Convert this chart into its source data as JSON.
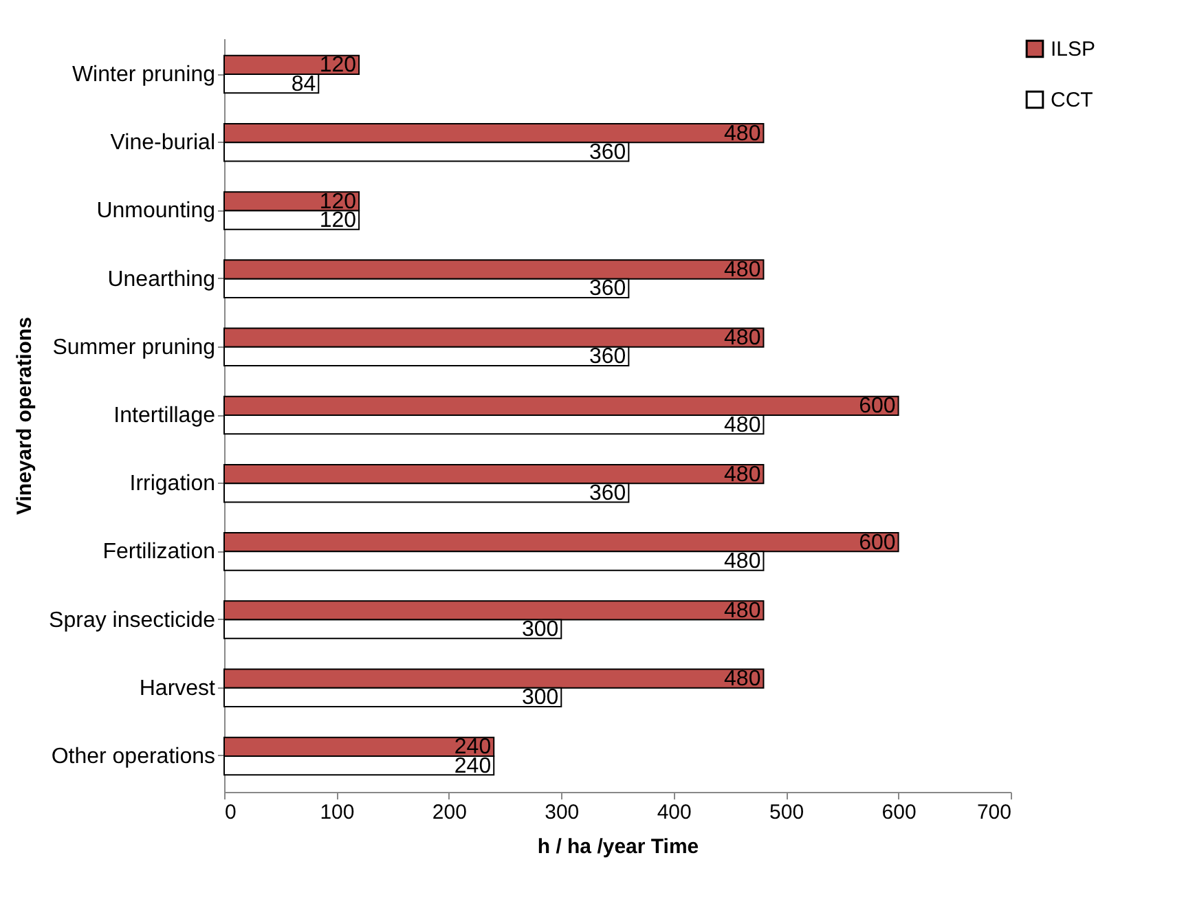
{
  "chart_data": {
    "type": "bar",
    "orientation": "horizontal",
    "xlabel": "h / ha /year   Time",
    "ylabel": "Vineyard    operations",
    "categories": [
      "Winter pruning",
      "Vine-burial",
      "Unmounting",
      "Unearthing",
      "Summer pruning",
      "Intertillage",
      "Irrigation",
      "Fertilization",
      "Spray insecticide",
      "Harvest",
      "Other operations"
    ],
    "series": [
      {
        "name": "ILSP",
        "color": "#c0504d",
        "values": [
          120,
          480,
          120,
          480,
          480,
          600,
          480,
          600,
          480,
          480,
          240
        ]
      },
      {
        "name": "CCT",
        "color": "#ffffff",
        "values": [
          84,
          360,
          120,
          360,
          360,
          480,
          360,
          480,
          300,
          300,
          240
        ]
      }
    ],
    "xlim": [
      0,
      700
    ],
    "xticks": [
      0,
      100,
      200,
      300,
      400,
      500,
      600,
      700
    ],
    "grid": false,
    "legend": "right",
    "data_labels": true
  }
}
